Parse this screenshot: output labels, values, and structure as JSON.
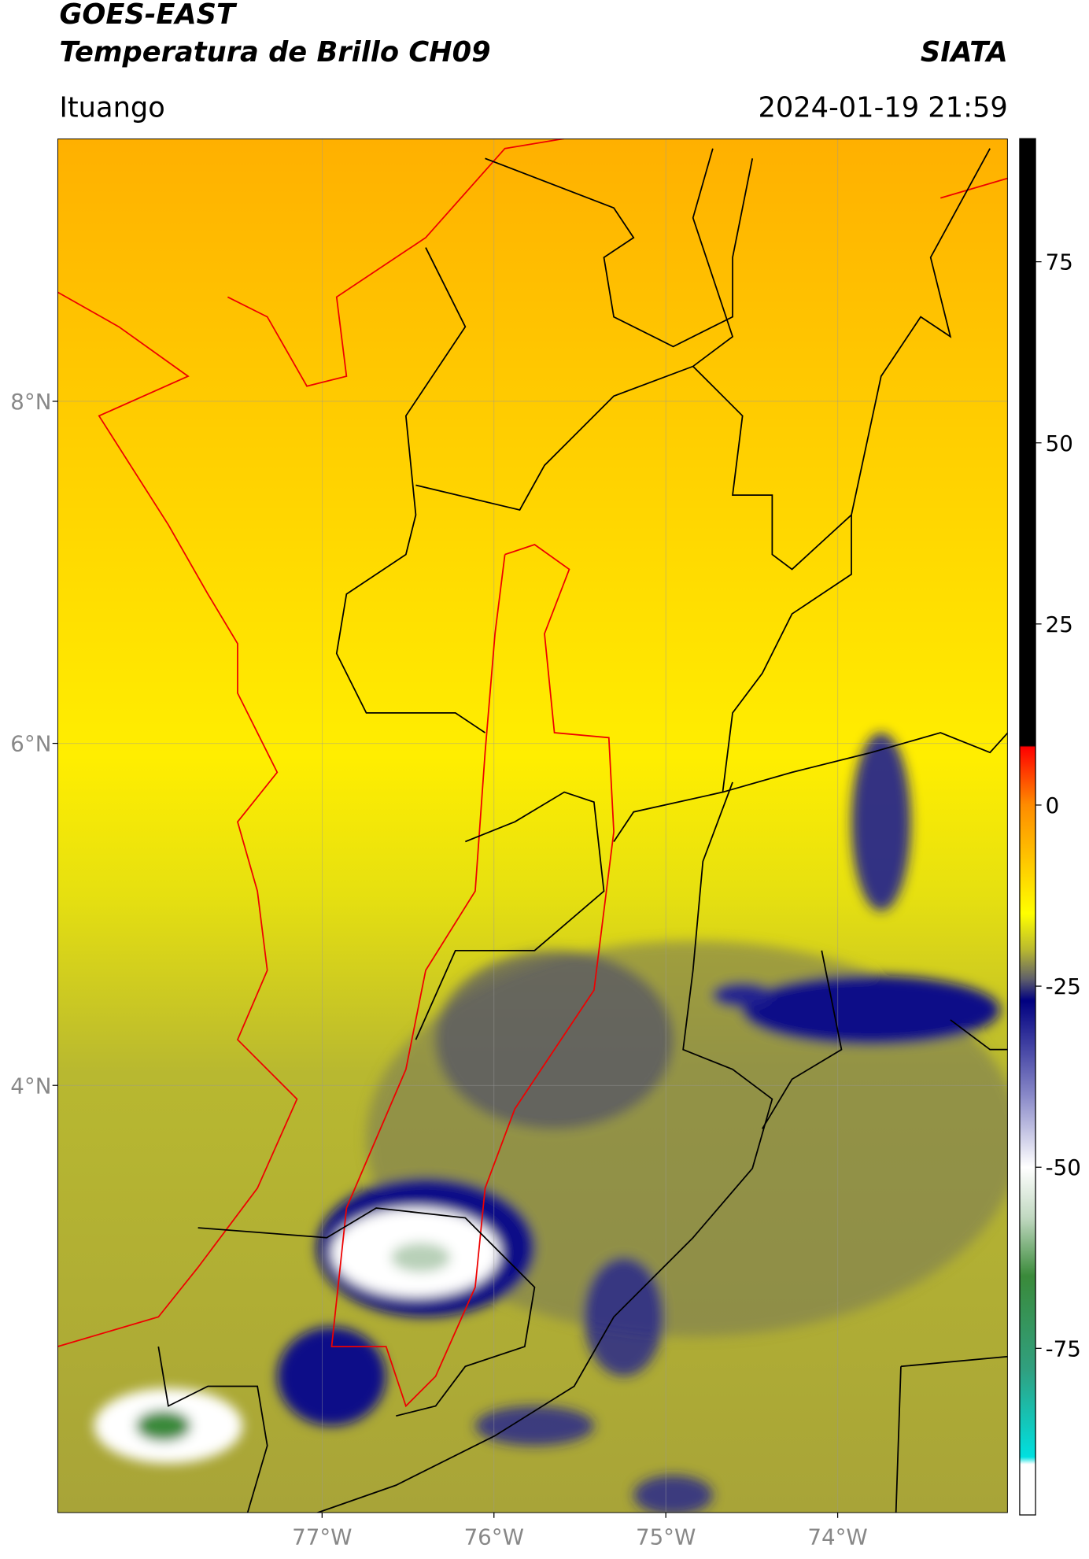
{
  "header": {
    "title_line1": "GOES-EAST",
    "title_line2": "Temperatura de Brillo CH09",
    "agency": "SIATA",
    "location": "Ituango",
    "datetime": "2024-01-19 21:59"
  },
  "map": {
    "lonlim": [
      -78.54,
      -73.01
    ],
    "latlim": [
      1.5,
      9.536
    ],
    "lonticks": [
      {
        "value": -77,
        "label": "77°W"
      },
      {
        "value": -76,
        "label": "76°W"
      },
      {
        "value": -75,
        "label": "75°W"
      },
      {
        "value": -74,
        "label": "74°W"
      }
    ],
    "latticks": [
      {
        "value": 8,
        "label": "8°N"
      },
      {
        "value": 6,
        "label": "6°N"
      },
      {
        "value": 4,
        "label": "4°N"
      }
    ],
    "grid": true
  },
  "colorbar": {
    "lim": [
      -98,
      92
    ],
    "ticks": [
      75,
      50,
      25,
      0,
      -25,
      -50,
      -75
    ],
    "stops": [
      {
        "value": 92,
        "color": "#000000"
      },
      {
        "value": 8.2,
        "color": "#000000"
      },
      {
        "value": 8,
        "color": "#ff0000"
      },
      {
        "value": 0,
        "color": "#ff8c00"
      },
      {
        "value": -15,
        "color": "#ffff00"
      },
      {
        "value": -20,
        "color": "#b8b830"
      },
      {
        "value": -24,
        "color": "#60606a"
      },
      {
        "value": -27,
        "color": "#000080"
      },
      {
        "value": -40,
        "color": "#8888c8"
      },
      {
        "value": -50,
        "color": "#ffffff"
      },
      {
        "value": -57,
        "color": "#c0d8c0"
      },
      {
        "value": -65,
        "color": "#3a8a3a"
      },
      {
        "value": -78,
        "color": "#30a080"
      },
      {
        "value": -90,
        "color": "#00e0e0"
      },
      {
        "value": -91,
        "color": "#ffffff"
      },
      {
        "value": -98,
        "color": "#ffffff"
      }
    ]
  }
}
